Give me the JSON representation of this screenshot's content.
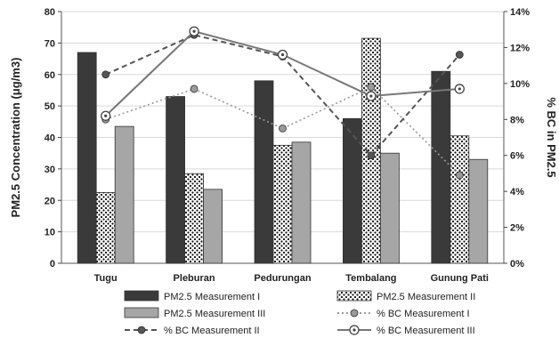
{
  "chart_data": {
    "type": "bar",
    "categories": [
      "Tugu",
      "Pleburan",
      "Pedurungan",
      "Tembalang",
      "Gunung Pati"
    ],
    "ylabel_left": "PM2.5 Concentration (μg/m3)",
    "ylabel_right": "% BC in PM2.5",
    "ylim_left": [
      0,
      80
    ],
    "ylim_right": [
      0,
      14
    ],
    "left_ticks": [
      "0",
      "10",
      "20",
      "30",
      "40",
      "50",
      "60",
      "70",
      "80"
    ],
    "right_ticks": [
      "0%",
      "2%",
      "4%",
      "6%",
      "8%",
      "10%",
      "12%",
      "14%"
    ],
    "grid": true,
    "legend_position": "bottom",
    "bar_series": [
      {
        "name": "PM2.5 Measurement I",
        "values": [
          67,
          53,
          58,
          46,
          61
        ],
        "color": "#3a3a3a",
        "pattern": "solid"
      },
      {
        "name": "PM2.5 Measurement II",
        "values": [
          22.5,
          28.5,
          37.5,
          71.5,
          40.5
        ],
        "color": "#ffffff",
        "pattern": "dots"
      },
      {
        "name": "PM2.5 Measurement III",
        "values": [
          43.5,
          23.5,
          38.5,
          35,
          33
        ],
        "color": "#a6a6a6",
        "pattern": "solid"
      }
    ],
    "line_series": [
      {
        "name": "% BC Measurement I",
        "values": [
          8.0,
          9.7,
          7.5,
          9.8,
          4.9
        ],
        "color": "#9a9a9a",
        "style": "dotted",
        "marker": "filled-circle"
      },
      {
        "name": "% BC Measurement II",
        "values": [
          10.5,
          12.7,
          11.5,
          6.0,
          11.6
        ],
        "color": "#555555",
        "style": "dashed",
        "marker": "filled-circle"
      },
      {
        "name": "% BC Measurement III",
        "values": [
          8.2,
          12.9,
          11.6,
          9.3,
          9.7
        ],
        "color": "#777777",
        "style": "solid",
        "marker": "open-dot-circle"
      }
    ]
  }
}
